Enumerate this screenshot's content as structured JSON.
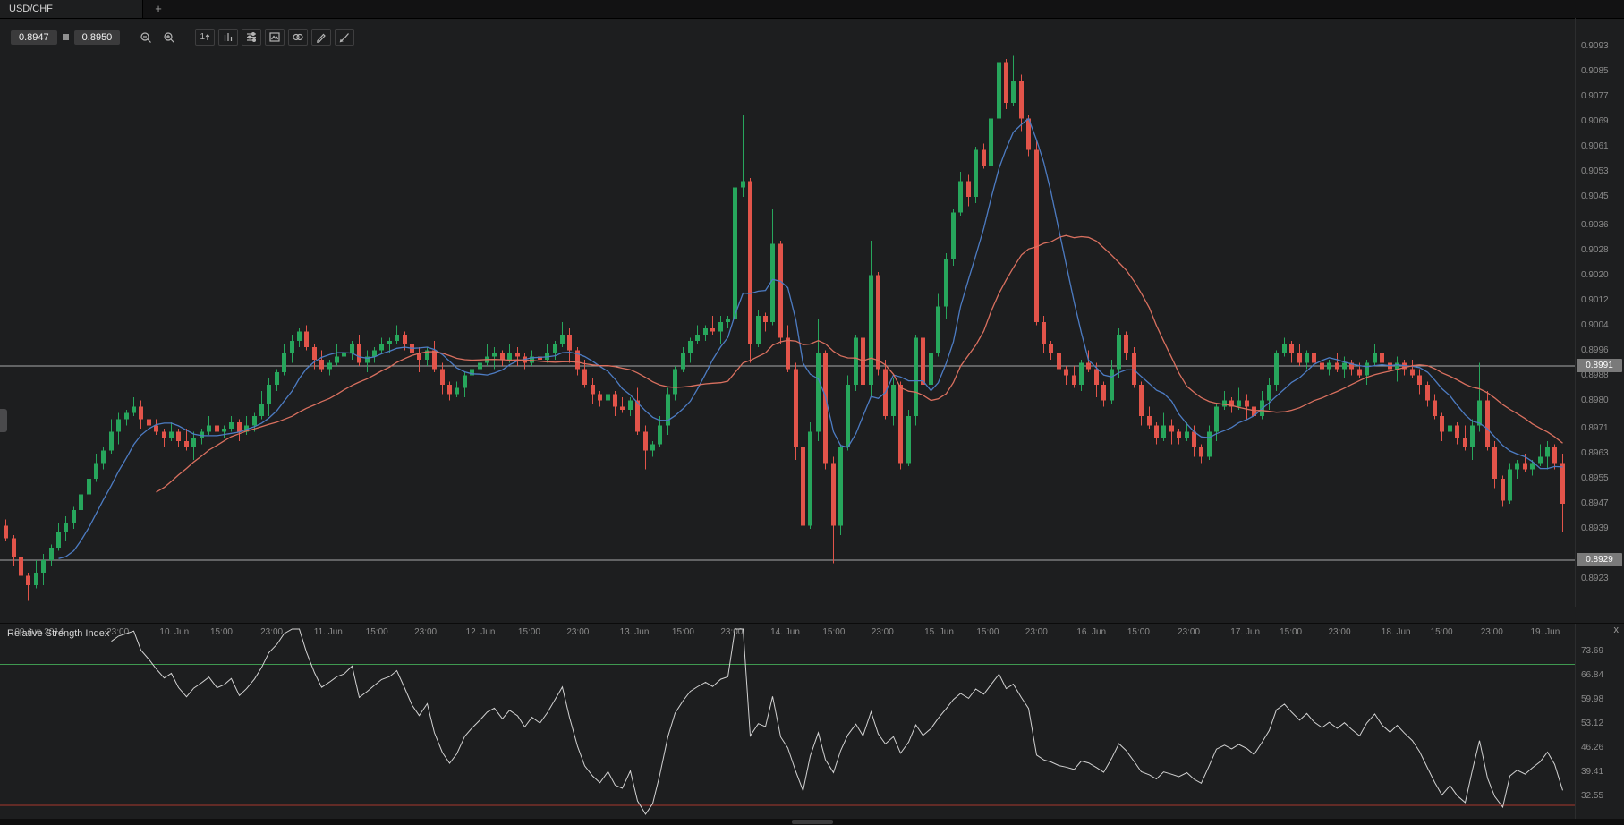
{
  "window": {
    "tab_title": "USD/CHF",
    "new_tab_label": "+"
  },
  "toolbar": {
    "bid": "0.8947",
    "ask": "0.8950",
    "icons": [
      {
        "name": "zoom-out"
      },
      {
        "name": "zoom-in"
      },
      {
        "name": "timeframe",
        "label": "1"
      },
      {
        "name": "chart-type"
      },
      {
        "name": "indicators"
      },
      {
        "name": "templates"
      },
      {
        "name": "link-charts"
      },
      {
        "name": "annotate"
      },
      {
        "name": "draw"
      }
    ]
  },
  "chart_data": {
    "type": "candlestick",
    "symbol": "USD/CHF",
    "base_price": 0.89,
    "pip_divisor": 10000,
    "open_first_pips": 40,
    "closes_pips": [
      36,
      30,
      24,
      21,
      25,
      29,
      33,
      38,
      41,
      45,
      50,
      55,
      60,
      64,
      70,
      74,
      76,
      78,
      74,
      72,
      70,
      68,
      70,
      67,
      65,
      68,
      70,
      72,
      70,
      71,
      73,
      70,
      72,
      75,
      79,
      85,
      89,
      95,
      99,
      102,
      97,
      93,
      90,
      92,
      94,
      95,
      98,
      92,
      94,
      96,
      98,
      99,
      101,
      98,
      95,
      93,
      96,
      90,
      85,
      82,
      84,
      88,
      90,
      92,
      94,
      95,
      93,
      95,
      94,
      92,
      94,
      93,
      95,
      98,
      101,
      96,
      90,
      85,
      82,
      80,
      82,
      78,
      77,
      80,
      70,
      64,
      66,
      72,
      82,
      90,
      95,
      99,
      101,
      103,
      102,
      105,
      106,
      148,
      150,
      98,
      107,
      105,
      130,
      100,
      90,
      65,
      40,
      70,
      95,
      60,
      40,
      65,
      85,
      100,
      85,
      120,
      90,
      75,
      85,
      60,
      75,
      100,
      85,
      95,
      110,
      125,
      140,
      150,
      145,
      160,
      155,
      170,
      188,
      175,
      182,
      170,
      160,
      105,
      98,
      95,
      90,
      88,
      85,
      92,
      90,
      85,
      80,
      90,
      101,
      95,
      85,
      75,
      72,
      68,
      72,
      70,
      68,
      70,
      65,
      62,
      70,
      78,
      80,
      78,
      80,
      78,
      75,
      80,
      85,
      95,
      98,
      95,
      92,
      95,
      92,
      90,
      92,
      90,
      92,
      90,
      88,
      92,
      95,
      92,
      90,
      92,
      90,
      88,
      85,
      80,
      75,
      70,
      72,
      68,
      65,
      72,
      80,
      65,
      55,
      48,
      58,
      60,
      58,
      60,
      62,
      65,
      60,
      47
    ],
    "wick_pattern_up": [
      2,
      1,
      3,
      1,
      4,
      2,
      1,
      3,
      2,
      1
    ],
    "wick_pattern_down": [
      1,
      3,
      1,
      2,
      1,
      4,
      2,
      1,
      3,
      2
    ],
    "wick_overrides": {
      "3": {
        "low": 16
      },
      "85": {
        "low": 58
      },
      "97": {
        "high": 168
      },
      "98": {
        "high": 171
      },
      "99": {
        "low": 92
      },
      "102": {
        "high": 141
      },
      "106": {
        "low": 25
      },
      "108": {
        "high": 106
      },
      "110": {
        "low": 28
      },
      "115": {
        "high": 131
      },
      "132": {
        "high": 193
      },
      "134": {
        "high": 190
      },
      "196": {
        "high": 92
      },
      "207": {
        "low": 38
      }
    },
    "indicators": {
      "ma_fast": {
        "period": 8,
        "color": "#4d7cc3"
      },
      "ma_slow": {
        "period": 21,
        "color": "#d9705f"
      }
    },
    "price_lines": [
      {
        "label": "0.8991",
        "value_pips": 91
      },
      {
        "label": "0.8929",
        "value_pips": 29
      }
    ],
    "price_axis_labels": [
      {
        "label": "0.9093",
        "value_pips": 193
      },
      {
        "label": "0.9085",
        "value_pips": 185
      },
      {
        "label": "0.9077",
        "value_pips": 177
      },
      {
        "label": "0.9069",
        "value_pips": 169
      },
      {
        "label": "0.9061",
        "value_pips": 161
      },
      {
        "label": "0.9053",
        "value_pips": 153
      },
      {
        "label": "0.9045",
        "value_pips": 145
      },
      {
        "label": "0.9036",
        "value_pips": 136
      },
      {
        "label": "0.9028",
        "value_pips": 128
      },
      {
        "label": "0.9020",
        "value_pips": 120
      },
      {
        "label": "0.9012",
        "value_pips": 112
      },
      {
        "label": "0.9004",
        "value_pips": 104
      },
      {
        "label": "0.8996",
        "value_pips": 96
      },
      {
        "label": "0.8988",
        "value_pips": 88
      },
      {
        "label": "0.8980",
        "value_pips": 80
      },
      {
        "label": "0.8971",
        "value_pips": 71
      },
      {
        "label": "0.8963",
        "value_pips": 63
      },
      {
        "label": "0.8955",
        "value_pips": 55
      },
      {
        "label": "0.8947",
        "value_pips": 47
      },
      {
        "label": "0.8939",
        "value_pips": 39
      },
      {
        "label": "0.8923",
        "value_pips": 23
      }
    ],
    "time_axis": [
      {
        "label": "09 Jun 2014",
        "pos": 0.025
      },
      {
        "label": "23:00",
        "pos": 0.075
      },
      {
        "label": "10. Jun",
        "pos": 0.111
      },
      {
        "label": "15:00",
        "pos": 0.141
      },
      {
        "label": "23:00",
        "pos": 0.173
      },
      {
        "label": "11. Jun",
        "pos": 0.209
      },
      {
        "label": "15:00",
        "pos": 0.24
      },
      {
        "label": "23:00",
        "pos": 0.271
      },
      {
        "label": "12. Jun",
        "pos": 0.306
      },
      {
        "label": "15:00",
        "pos": 0.337
      },
      {
        "label": "23:00",
        "pos": 0.368
      },
      {
        "label": "13. Jun",
        "pos": 0.404
      },
      {
        "label": "15:00",
        "pos": 0.435
      },
      {
        "label": "23:00",
        "pos": 0.466
      },
      {
        "label": "14. Jun",
        "pos": 0.5
      },
      {
        "label": "15:00",
        "pos": 0.531
      },
      {
        "label": "23:00",
        "pos": 0.562
      },
      {
        "label": "15. Jun",
        "pos": 0.598
      },
      {
        "label": "15:00",
        "pos": 0.629
      },
      {
        "label": "23:00",
        "pos": 0.66
      },
      {
        "label": "16. Jun",
        "pos": 0.695
      },
      {
        "label": "15:00",
        "pos": 0.725
      },
      {
        "label": "23:00",
        "pos": 0.757
      },
      {
        "label": "17. Jun",
        "pos": 0.793
      },
      {
        "label": "15:00",
        "pos": 0.822
      },
      {
        "label": "23:00",
        "pos": 0.853
      },
      {
        "label": "18. Jun",
        "pos": 0.889
      },
      {
        "label": "15:00",
        "pos": 0.918
      },
      {
        "label": "23:00",
        "pos": 0.95
      },
      {
        "label": "19. Jun",
        "pos": 0.984
      }
    ],
    "colors": {
      "up": "#27a65c",
      "down": "#e2544a",
      "price_line": "#a8a8a8",
      "badge_bg": "#7a7a7a",
      "badge_text": "#ffffff",
      "axis_text": "#8b8b8b",
      "background": "#1d1e1f"
    }
  },
  "rsi_panel": {
    "title": "Relative Strength Index",
    "close_label": "x",
    "period": 14,
    "axis_values": [
      73.69,
      66.84,
      59.98,
      53.12,
      46.26,
      39.41,
      32.55
    ],
    "levels": {
      "overbought": 70,
      "oversold": 30
    },
    "colors": {
      "line": "#d2d2d2",
      "overbought": "#3f9950",
      "oversold": "#a8382e"
    }
  }
}
